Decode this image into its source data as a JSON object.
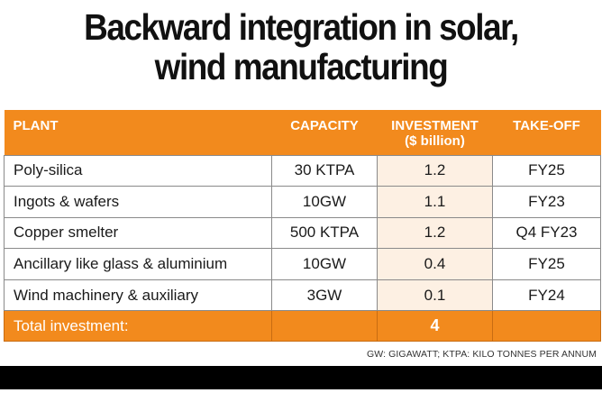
{
  "title": {
    "line1": "Backward integration in solar,",
    "line2": "wind manufacturing"
  },
  "table": {
    "headers": {
      "plant": "PLANT",
      "capacity": "CAPACITY",
      "investment_line1": "INVESTMENT",
      "investment_line2": "($ billion)",
      "takeoff": "TAKE-OFF"
    },
    "rows": [
      {
        "plant": "Poly-silica",
        "capacity": "30 KTPA",
        "investment": "1.2",
        "takeoff": "FY25"
      },
      {
        "plant": "Ingots & wafers",
        "capacity": "10GW",
        "investment": "1.1",
        "takeoff": "FY23"
      },
      {
        "plant": "Copper smelter",
        "capacity": "500 KTPA",
        "investment": "1.2",
        "takeoff": "Q4 FY23"
      },
      {
        "plant": "Ancillary like glass & aluminium",
        "capacity": "10GW",
        "investment": "0.4",
        "takeoff": "FY25"
      },
      {
        "plant": "Wind machinery & auxiliary",
        "capacity": "3GW",
        "investment": "0.1",
        "takeoff": "FY24"
      }
    ],
    "total": {
      "label": "Total investment:",
      "capacity": "",
      "investment": "4",
      "takeoff": ""
    }
  },
  "footnote": "GW: GIGAWATT; KTPA: KILO TONNES PER ANNUM",
  "colors": {
    "accent_orange": "#f28a1d",
    "shade_cell": "#fdf0e3",
    "bottom_bar": "#000000"
  }
}
